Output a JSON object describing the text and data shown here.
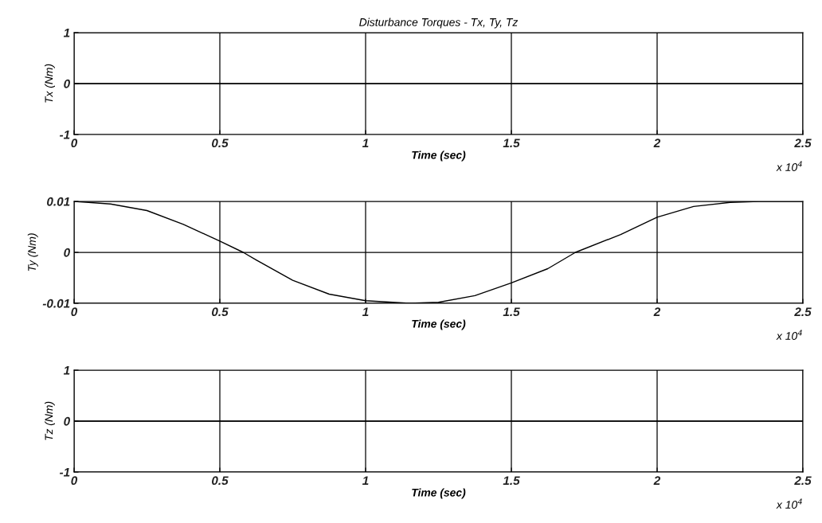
{
  "chart_data": [
    {
      "type": "line",
      "title": "Disturbance Torques - Tx, Ty, Tz",
      "xlabel": "Time (sec)",
      "ylabel": "Tx (Nm)",
      "x": [
        0,
        2.5
      ],
      "series": [
        {
          "color": "#000000",
          "values": [
            0,
            0
          ]
        }
      ],
      "xlim": [
        0,
        2.5
      ],
      "xticks": [
        0,
        0.5,
        1,
        1.5,
        2,
        2.5
      ],
      "ylim": [
        -1,
        1
      ],
      "yticks": [
        -1,
        0,
        1
      ],
      "grid": true,
      "annotations": [
        "x 10$^{4}$"
      ]
    },
    {
      "type": "line",
      "xlabel": "Time (sec)",
      "ylabel": "Ty (Nm)",
      "x": [
        0,
        0.125,
        0.25,
        0.375,
        0.5,
        0.58,
        0.625,
        0.75,
        0.875,
        1,
        1.15,
        1.25,
        1.375,
        1.5,
        1.625,
        1.72,
        1.875,
        2,
        2.125,
        2.25,
        2.35,
        2.5
      ],
      "series": [
        {
          "color": "#000000",
          "values": [
            0.01,
            0.0095,
            0.0082,
            0.0055,
            0.0022,
            0,
            -0.0015,
            -0.0055,
            -0.0082,
            -0.0095,
            -0.01,
            -0.0098,
            -0.0085,
            -0.006,
            -0.0032,
            0,
            0.0035,
            0.0069,
            0.009,
            0.0098,
            0.01,
            0.01
          ]
        }
      ],
      "xlim": [
        0,
        2.5
      ],
      "xticks": [
        0,
        0.5,
        1,
        1.5,
        2,
        2.5
      ],
      "ylim": [
        -0.01,
        0.01
      ],
      "yticks": [
        -0.01,
        0,
        0.01
      ],
      "grid": true,
      "annotations": [
        "x 10$^{4}$"
      ]
    },
    {
      "type": "line",
      "xlabel": "Time (sec)",
      "ylabel": "Tz (Nm)",
      "x": [
        0,
        2.5
      ],
      "series": [
        {
          "color": "#000000",
          "values": [
            0,
            0
          ]
        }
      ],
      "xlim": [
        0,
        2.5
      ],
      "xticks": [
        0,
        0.5,
        1,
        1.5,
        2,
        2.5
      ],
      "ylim": [
        -1,
        1
      ],
      "yticks": [
        -1,
        0,
        1
      ],
      "grid": true,
      "annotations": [
        "x 10$^{4}$"
      ]
    }
  ]
}
